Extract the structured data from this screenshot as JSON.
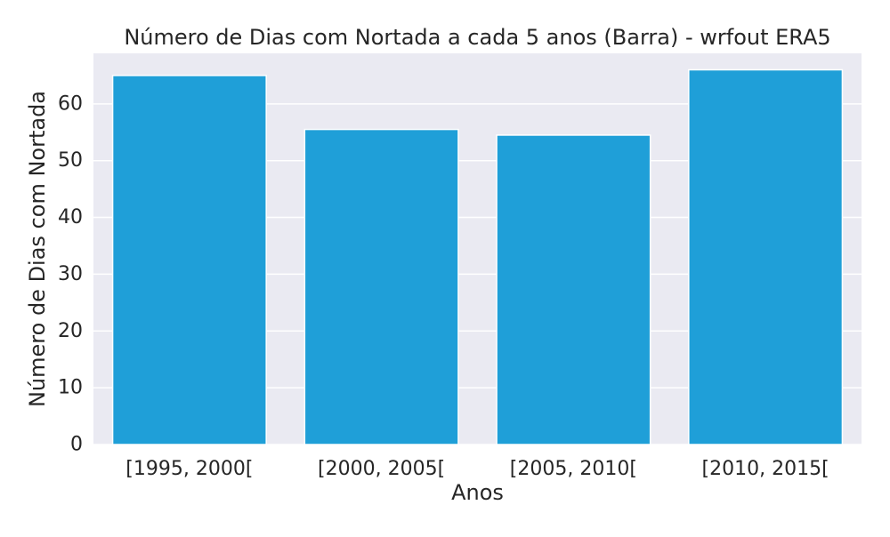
{
  "chart_data": {
    "type": "bar",
    "title": "Número de Dias com Nortada a cada 5 anos (Barra) - wrfout ERA5",
    "xlabel": "Anos",
    "ylabel": "Número de Dias com Nortada",
    "categories": [
      "[1995, 2000[",
      "[2000, 2005[",
      "[2005, 2010[",
      "[2010, 2015["
    ],
    "values": [
      65,
      55.5,
      54.5,
      66
    ],
    "ylim": [
      0,
      68.9
    ],
    "yticks": [
      0,
      10,
      20,
      30,
      40,
      50,
      60
    ],
    "grid": true,
    "bar_color": "#1f9fd8",
    "background_color": "#eaeaf2",
    "grid_color": "#ffffff"
  }
}
